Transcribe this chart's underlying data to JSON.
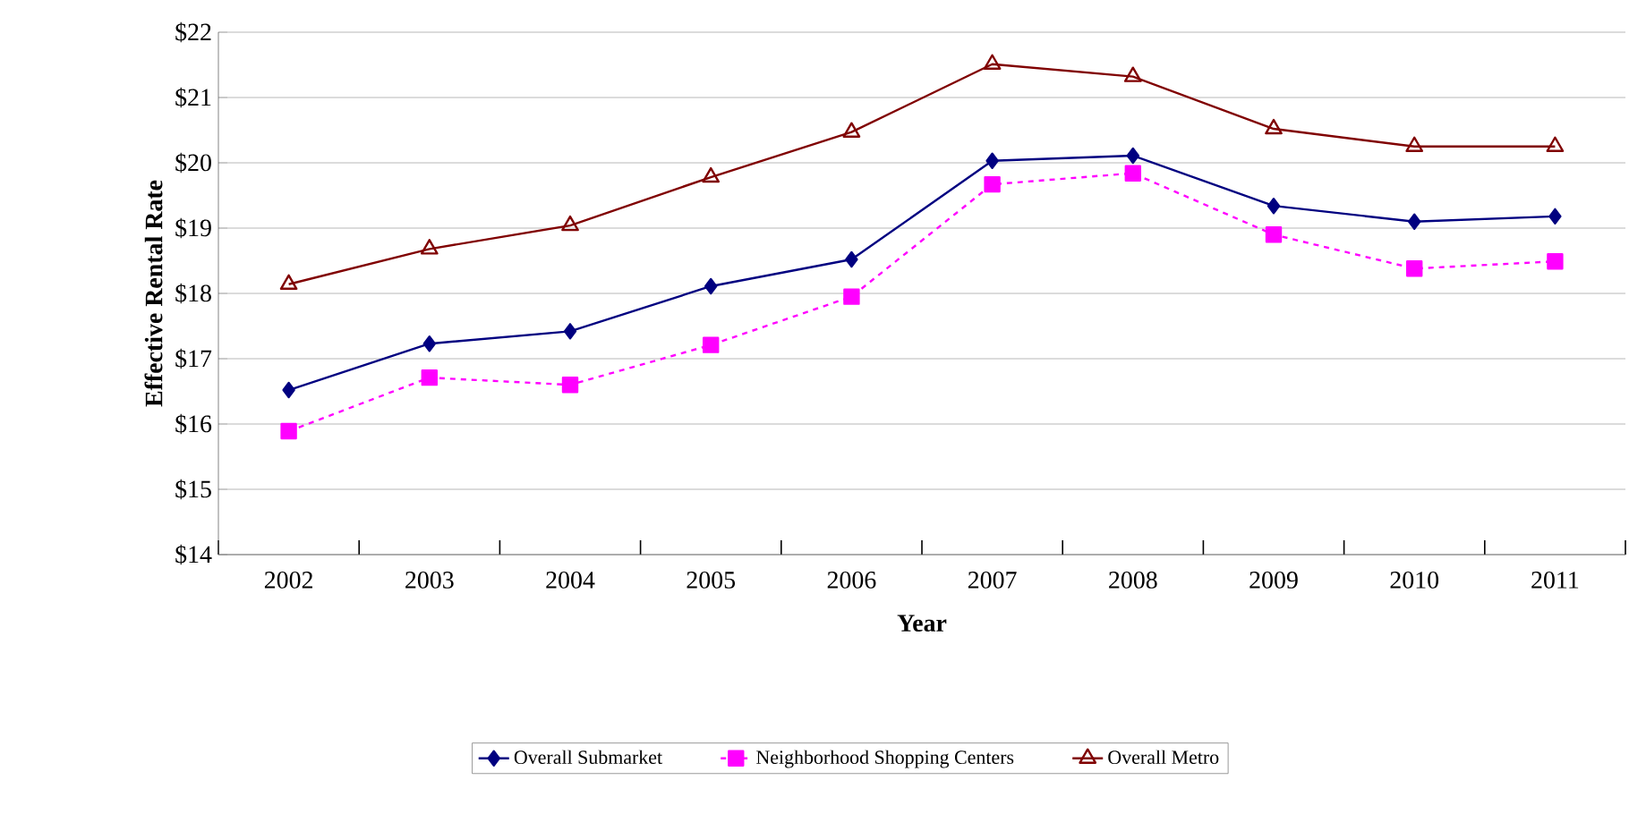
{
  "chart_data": {
    "type": "line",
    "xlabel": "Year",
    "ylabel": "Effective Rental Rate",
    "categories": [
      "2002",
      "2003",
      "2004",
      "2005",
      "2006",
      "2007",
      "2008",
      "2009",
      "2010",
      "2011"
    ],
    "series": [
      {
        "name": "Overall Submarket",
        "color": "#000080",
        "marker": "diamond",
        "line_style": "solid",
        "values": [
          16.52,
          17.23,
          17.42,
          18.11,
          18.52,
          20.03,
          20.11,
          19.34,
          19.1,
          19.18
        ]
      },
      {
        "name": "Neighborhood Shopping Centers",
        "color": "#ff00ff",
        "marker": "square",
        "line_style": "dashed",
        "values": [
          15.89,
          16.71,
          16.6,
          17.21,
          17.95,
          19.67,
          19.84,
          18.9,
          18.38,
          18.49
        ]
      },
      {
        "name": "Overall Metro",
        "color": "#800000",
        "marker": "triangle",
        "line_style": "solid",
        "values": [
          18.14,
          18.68,
          19.04,
          19.78,
          20.47,
          21.51,
          21.32,
          20.52,
          20.25,
          20.25
        ]
      }
    ],
    "ylim": [
      14,
      22
    ],
    "yticks": [
      {
        "value": 14,
        "label": "$14"
      },
      {
        "value": 15,
        "label": "$15"
      },
      {
        "value": 16,
        "label": "$16"
      },
      {
        "value": 17,
        "label": "$17"
      },
      {
        "value": 18,
        "label": "$18"
      },
      {
        "value": 19,
        "label": "$19"
      },
      {
        "value": 20,
        "label": "$20"
      },
      {
        "value": 21,
        "label": "$21"
      },
      {
        "value": 22,
        "label": "$22"
      }
    ],
    "grid": "y",
    "legend": "bottom"
  }
}
